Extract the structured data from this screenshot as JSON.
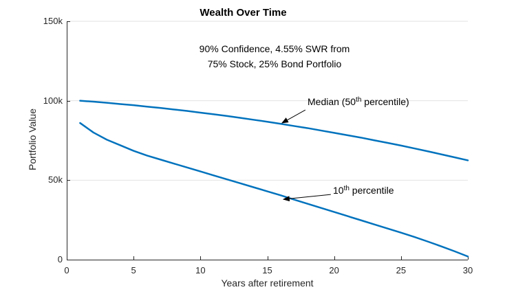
{
  "title": "Wealth Over Time",
  "subtitle_lines": [
    "90% Confidence, 4.55% SWR from",
    "75% Stock, 25% Bond Portfolio"
  ],
  "colors": {
    "line": "#0072BD",
    "grid": "#e2e2e2",
    "axis": "#262626",
    "arrow": "#000000"
  },
  "axes": {
    "x_tick_labels": [
      "0",
      "5",
      "10",
      "15",
      "20",
      "25",
      "30"
    ],
    "y_tick_labels": [
      "0",
      "50k",
      "100k",
      "150k"
    ]
  },
  "annotations": {
    "median": {
      "pre": "Median (50",
      "sup": "th",
      "post": " percentile)",
      "target_x": 16.1,
      "target_y": 86000
    },
    "tenth": {
      "pre": "10",
      "sup": "th",
      "post": " percentile",
      "target_x": 16.2,
      "target_y": 38000
    }
  },
  "chart_data": {
    "type": "line",
    "title": "Wealth Over Time",
    "annotation": "90% Confidence, 4.55% SWR from 75% Stock, 25% Bond Portfolio",
    "xlabel": "Years after retirement",
    "ylabel": "Portfolio Value",
    "xlim": [
      0,
      30
    ],
    "ylim": [
      0,
      150000
    ],
    "x_ticks": [
      0,
      5,
      10,
      15,
      20,
      25,
      30
    ],
    "y_ticks": [
      0,
      50000,
      100000,
      150000
    ],
    "grid": "horizontal-only",
    "legend": "none (inline arrow annotations)",
    "x": [
      1,
      2,
      3,
      4,
      5,
      6,
      7,
      8,
      9,
      10,
      11,
      12,
      13,
      14,
      15,
      16,
      17,
      18,
      19,
      20,
      21,
      22,
      23,
      24,
      25,
      26,
      27,
      28,
      29,
      30
    ],
    "series": [
      {
        "name": "Median (50th percentile)",
        "values": [
          100000,
          99400,
          98700,
          97900,
          97200,
          96300,
          95500,
          94500,
          93600,
          92500,
          91500,
          90400,
          89200,
          88000,
          86800,
          85500,
          84100,
          82800,
          81300,
          79800,
          78300,
          76800,
          75100,
          73500,
          71800,
          70000,
          68200,
          66300,
          64400,
          62500
        ]
      },
      {
        "name": "10th percentile",
        "values": [
          86000,
          80000,
          75500,
          72000,
          68500,
          65500,
          63000,
          60500,
          58000,
          55500,
          53000,
          50500,
          48000,
          45500,
          43000,
          40500,
          37800,
          35200,
          32600,
          30000,
          27400,
          24800,
          22200,
          19600,
          17000,
          14300,
          11400,
          8400,
          5300,
          2000
        ]
      }
    ]
  }
}
